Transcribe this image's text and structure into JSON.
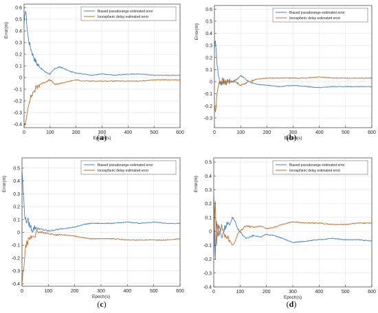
{
  "colors": {
    "series1": "#3f7fd0",
    "series2": "#c46a20",
    "grid": "#e3e3e3",
    "axis": "#333333"
  },
  "chart_data": [
    {
      "type": "line",
      "panel_label": "(a)",
      "xlabel": "Epoch(s)",
      "ylabel": "Error(m)",
      "xlim": [
        0,
        600
      ],
      "ylim": [
        -0.43,
        0.63
      ],
      "xticks": [
        0,
        100,
        200,
        300,
        400,
        500,
        600
      ],
      "yticks": [
        -0.4,
        -0.3,
        -0.2,
        -0.1,
        0,
        0.1,
        0.2,
        0.3,
        0.4,
        0.5,
        0.6
      ],
      "grid": true,
      "legend": "top-right",
      "series": [
        {
          "name": "Biased pseudorange estimated error",
          "x": [
            0,
            5,
            10,
            15,
            20,
            30,
            40,
            50,
            60,
            80,
            100,
            120,
            140,
            160,
            180,
            200,
            230,
            260,
            300,
            350,
            400,
            450,
            500,
            550,
            600
          ],
          "y": [
            0.45,
            0.6,
            0.48,
            0.35,
            0.3,
            0.22,
            0.16,
            0.12,
            0.09,
            0.05,
            0.03,
            0.08,
            0.09,
            0.07,
            0.05,
            0.04,
            0.03,
            0.02,
            0.03,
            0.02,
            0.03,
            0.03,
            0.02,
            0.02,
            0.02
          ]
        },
        {
          "name": "Ionospheric delay estimated error",
          "x": [
            0,
            5,
            10,
            15,
            20,
            30,
            40,
            50,
            60,
            80,
            100,
            120,
            140,
            160,
            180,
            200,
            230,
            260,
            300,
            350,
            400,
            450,
            500,
            550,
            600
          ],
          "y": [
            -0.4,
            -0.42,
            -0.33,
            -0.25,
            -0.2,
            -0.15,
            -0.11,
            -0.08,
            -0.06,
            -0.04,
            -0.02,
            -0.06,
            -0.05,
            -0.04,
            -0.03,
            -0.02,
            -0.03,
            -0.03,
            -0.03,
            -0.03,
            -0.03,
            -0.03,
            -0.02,
            -0.02,
            -0.02
          ]
        }
      ]
    },
    {
      "type": "line",
      "panel_label": "(b)",
      "xlabel": "Epoch(s)",
      "ylabel": "Error(m)",
      "xlim": [
        0,
        600
      ],
      "ylim": [
        -0.38,
        0.63
      ],
      "xticks": [
        0,
        100,
        200,
        300,
        400,
        500,
        600
      ],
      "yticks": [
        -0.3,
        -0.2,
        -0.1,
        0,
        0.1,
        0.2,
        0.3,
        0.4,
        0.5,
        0.6
      ],
      "grid": true,
      "legend": "top-right",
      "series": [
        {
          "name": "Biased pseudorange estimated error",
          "x": [
            0,
            5,
            10,
            15,
            20,
            30,
            40,
            50,
            60,
            80,
            100,
            110,
            130,
            160,
            200,
            250,
            300,
            350,
            400,
            450,
            500,
            550,
            600
          ],
          "y": [
            0.3,
            0.33,
            0.15,
            0.05,
            0.0,
            -0.02,
            0.0,
            0.01,
            0.0,
            0.01,
            0.05,
            0.04,
            0.0,
            -0.02,
            -0.03,
            -0.04,
            -0.03,
            -0.04,
            -0.05,
            -0.04,
            -0.04,
            -0.04,
            -0.04
          ]
        },
        {
          "name": "Ionospheric delay estimated error",
          "x": [
            0,
            5,
            10,
            15,
            20,
            30,
            40,
            50,
            60,
            80,
            100,
            110,
            130,
            160,
            200,
            250,
            300,
            350,
            400,
            450,
            500,
            550,
            600
          ],
          "y": [
            -0.2,
            -0.25,
            -0.1,
            -0.02,
            0.0,
            0.01,
            0.0,
            -0.01,
            0.0,
            0.0,
            -0.03,
            -0.02,
            0.0,
            0.02,
            0.03,
            0.03,
            0.03,
            0.03,
            0.04,
            0.03,
            0.03,
            0.03,
            0.03
          ]
        }
      ]
    },
    {
      "type": "line",
      "panel_label": "(c)",
      "xlabel": "Epoch(s)",
      "ylabel": "Error(m)",
      "xlim": [
        0,
        600
      ],
      "ylim": [
        -0.42,
        0.58
      ],
      "xticks": [
        0,
        100,
        200,
        300,
        400,
        500,
        600
      ],
      "yticks": [
        -0.4,
        -0.3,
        -0.2,
        -0.1,
        0,
        0.1,
        0.2,
        0.3,
        0.4,
        0.5
      ],
      "grid": true,
      "legend": "top-right",
      "series": [
        {
          "name": "Biased pseudorange estimated error",
          "x": [
            0,
            5,
            10,
            15,
            20,
            30,
            40,
            50,
            60,
            80,
            100,
            130,
            160,
            200,
            230,
            260,
            300,
            350,
            400,
            450,
            500,
            550,
            600
          ],
          "y": [
            0.48,
            0.3,
            0.15,
            0.08,
            0.1,
            0.05,
            0.02,
            0.04,
            0.03,
            0.02,
            0.01,
            0.02,
            0.03,
            0.04,
            0.06,
            0.07,
            0.07,
            0.07,
            0.08,
            0.07,
            0.08,
            0.07,
            0.07
          ]
        },
        {
          "name": "Ionospheric delay estimated error",
          "x": [
            0,
            5,
            10,
            15,
            20,
            30,
            40,
            50,
            60,
            80,
            100,
            130,
            160,
            200,
            230,
            260,
            300,
            350,
            400,
            450,
            500,
            550,
            600
          ],
          "y": [
            -0.4,
            -0.3,
            -0.2,
            -0.1,
            -0.08,
            -0.05,
            -0.03,
            -0.02,
            0.0,
            0.0,
            -0.01,
            -0.02,
            -0.02,
            -0.03,
            -0.04,
            -0.05,
            -0.05,
            -0.05,
            -0.06,
            -0.06,
            -0.06,
            -0.06,
            -0.05
          ]
        }
      ]
    },
    {
      "type": "line",
      "panel_label": "(d)",
      "xlabel": "Epoch(s)",
      "ylabel": "Error(m)",
      "xlim": [
        0,
        600
      ],
      "ylim": [
        -0.4,
        0.53
      ],
      "xticks": [
        0,
        100,
        200,
        300,
        400,
        500,
        600
      ],
      "yticks": [
        -0.4,
        -0.3,
        -0.2,
        -0.1,
        0,
        0.1,
        0.2,
        0.3,
        0.4,
        0.5
      ],
      "grid": true,
      "legend": "top-right",
      "series": [
        {
          "name": "Biased pseudorange estimated error",
          "x": [
            0,
            3,
            6,
            10,
            15,
            20,
            30,
            40,
            50,
            60,
            70,
            80,
            90,
            100,
            120,
            150,
            180,
            200,
            230,
            260,
            300,
            350,
            400,
            450,
            500,
            550,
            600
          ],
          "y": [
            0.25,
            0.05,
            -0.2,
            0.1,
            -0.05,
            0.05,
            -0.05,
            0.02,
            0.06,
            0.04,
            0.1,
            0.08,
            0.02,
            0.0,
            -0.05,
            -0.03,
            -0.04,
            -0.02,
            -0.03,
            -0.05,
            -0.08,
            -0.07,
            -0.06,
            -0.05,
            -0.06,
            -0.06,
            -0.07
          ]
        },
        {
          "name": "Ionospheric delay estimated error",
          "x": [
            0,
            3,
            6,
            10,
            15,
            20,
            30,
            40,
            50,
            60,
            70,
            80,
            90,
            100,
            120,
            150,
            180,
            200,
            230,
            260,
            300,
            350,
            400,
            450,
            500,
            550,
            600
          ],
          "y": [
            -0.2,
            0.1,
            0.2,
            -0.1,
            0.05,
            -0.03,
            0.04,
            -0.02,
            -0.05,
            -0.06,
            -0.1,
            -0.08,
            -0.02,
            0.0,
            0.04,
            0.03,
            0.04,
            0.02,
            0.03,
            0.05,
            0.07,
            0.06,
            0.06,
            0.05,
            0.05,
            0.06,
            0.06
          ]
        }
      ]
    }
  ]
}
